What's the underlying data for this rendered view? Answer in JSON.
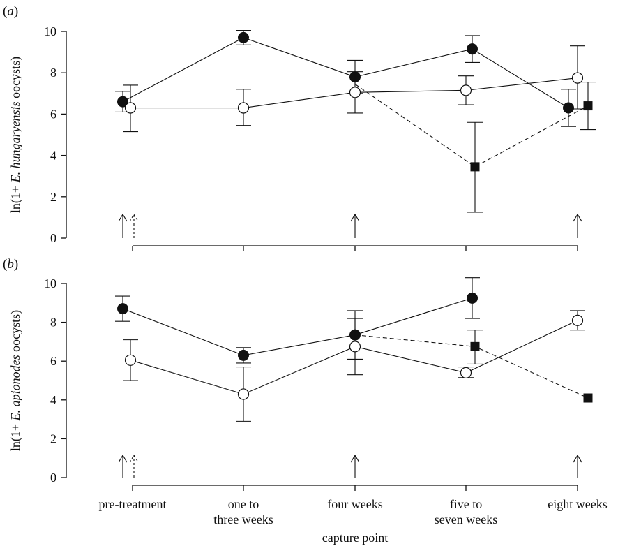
{
  "chart_data": [
    {
      "panel_label": "(a)",
      "type": "line",
      "ylabel": {
        "prefix": "ln(1+ ",
        "species": "E. hungaryensis",
        "suffix": " oocysts)"
      },
      "ylim": [
        0,
        10
      ],
      "yticks": [
        0,
        2,
        4,
        6,
        8,
        10
      ],
      "categories": [
        "pre-treatment",
        "one to three weeks",
        "four weeks",
        "five to seven weeks",
        "eight weeks"
      ],
      "series": [
        {
          "marker": "filled-circle",
          "line": "solid",
          "points": [
            {
              "x": "pre-treatment",
              "y": 6.6,
              "low": 6.1,
              "high": 7.1
            },
            {
              "x": "one to three weeks",
              "y": 9.7,
              "low": 9.35,
              "high": 10.05
            },
            {
              "x": "four weeks",
              "y": 7.8,
              "low": 7.0,
              "high": 8.6
            },
            {
              "x": "five to seven weeks",
              "y": 9.15,
              "low": 8.5,
              "high": 9.8
            },
            {
              "x": "eight weeks",
              "y": 6.3,
              "low": 5.4,
              "high": 7.2
            }
          ]
        },
        {
          "marker": "open-circle",
          "line": "solid",
          "points": [
            {
              "x": "pre-treatment",
              "y": 6.3,
              "low": 5.15,
              "high": 7.4
            },
            {
              "x": "one to three weeks",
              "y": 6.3,
              "low": 5.45,
              "high": 7.2
            },
            {
              "x": "four weeks",
              "y": 7.05,
              "low": 6.05,
              "high": 8.05
            },
            {
              "x": "five to seven weeks",
              "y": 7.15,
              "low": 6.45,
              "high": 7.85
            },
            {
              "x": "eight weeks",
              "y": 7.75,
              "low": 6.25,
              "high": 9.3
            }
          ]
        },
        {
          "marker": "filled-square",
          "line": "dashed",
          "points": [
            {
              "x": "four weeks",
              "y": 7.45
            },
            {
              "x": "five to seven weeks",
              "y": 3.45,
              "low": 1.25,
              "high": 5.6
            },
            {
              "x": "eight weeks",
              "y": 6.4,
              "low": 5.25,
              "high": 7.55
            }
          ]
        }
      ],
      "treatment_arrows": [
        {
          "x": "pre-treatment",
          "style": "solid"
        },
        {
          "x": "pre-treatment",
          "style": "dashed"
        },
        {
          "x": "four weeks",
          "style": "solid"
        },
        {
          "x": "eight weeks",
          "style": "solid"
        }
      ]
    },
    {
      "panel_label": "(b)",
      "type": "line",
      "ylabel": {
        "prefix": "ln(1+ ",
        "species": "E. apionodes",
        "suffix": " oocysts)"
      },
      "ylim": [
        0,
        10
      ],
      "yticks": [
        0,
        2,
        4,
        6,
        8,
        10
      ],
      "categories": [
        "pre-treatment",
        "one to three weeks",
        "four weeks",
        "five to seven weeks",
        "eight weeks"
      ],
      "series": [
        {
          "marker": "filled-circle",
          "line": "solid",
          "points": [
            {
              "x": "pre-treatment",
              "y": 8.7,
              "low": 8.05,
              "high": 9.35
            },
            {
              "x": "one to three weeks",
              "y": 6.3,
              "low": 5.9,
              "high": 6.7
            },
            {
              "x": "four weeks",
              "y": 7.35,
              "low": 6.1,
              "high": 8.6
            },
            {
              "x": "five to seven weeks",
              "y": 9.25,
              "low": 8.2,
              "high": 10.3
            }
          ]
        },
        {
          "marker": "open-circle",
          "line": "solid",
          "points": [
            {
              "x": "pre-treatment",
              "y": 6.05,
              "low": 5.0,
              "high": 7.1
            },
            {
              "x": "one to three weeks",
              "y": 4.3,
              "low": 2.9,
              "high": 5.7
            },
            {
              "x": "four weeks",
              "y": 6.75,
              "low": 5.3,
              "high": 8.2
            },
            {
              "x": "five to seven weeks",
              "y": 5.4,
              "low": 5.15,
              "high": 5.7
            },
            {
              "x": "eight weeks",
              "y": 8.1,
              "low": 7.6,
              "high": 8.6
            }
          ]
        },
        {
          "marker": "filled-square",
          "line": "dashed",
          "points": [
            {
              "x": "four weeks",
              "y": 7.35
            },
            {
              "x": "five to seven weeks",
              "y": 6.75,
              "low": 5.85,
              "high": 7.6
            },
            {
              "x": "eight weeks",
              "y": 4.1
            }
          ]
        }
      ],
      "treatment_arrows": [
        {
          "x": "pre-treatment",
          "style": "solid"
        },
        {
          "x": "pre-treatment",
          "style": "dashed"
        },
        {
          "x": "four weeks",
          "style": "solid"
        },
        {
          "x": "eight weeks",
          "style": "solid"
        }
      ]
    }
  ],
  "x_axis": {
    "tick_labels": [
      [
        "pre-treatment"
      ],
      [
        "one to",
        "three weeks"
      ],
      [
        "four weeks"
      ],
      [
        "five to",
        "seven weeks"
      ],
      [
        "eight weeks"
      ]
    ],
    "title": "capture point"
  }
}
